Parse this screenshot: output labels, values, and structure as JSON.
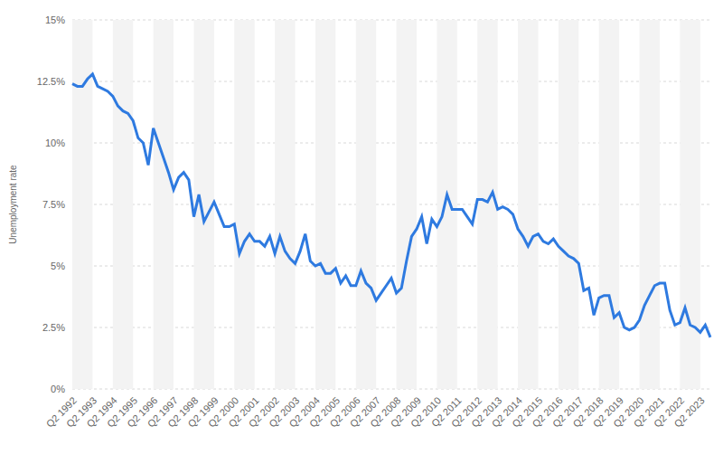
{
  "chart_data": {
    "type": "line",
    "y_label": "Unemployment rate",
    "color": "#2e7ae0",
    "grid": true,
    "ylim": [
      0,
      15
    ],
    "yticks": [
      {
        "value": 0,
        "label": "0%"
      },
      {
        "value": 2.5,
        "label": "2.5%"
      },
      {
        "value": 5,
        "label": "5%"
      },
      {
        "value": 7.5,
        "label": "7.5%"
      },
      {
        "value": 10,
        "label": "10%"
      },
      {
        "value": 12.5,
        "label": "12.5%"
      },
      {
        "value": 15,
        "label": "15%"
      }
    ],
    "categories": [
      "Q2 1992",
      null,
      null,
      null,
      "Q2 1993",
      null,
      null,
      null,
      "Q2 1994",
      null,
      null,
      null,
      "Q2 1995",
      null,
      null,
      null,
      "Q2 1996",
      null,
      null,
      null,
      "Q2 1997",
      null,
      null,
      null,
      "Q2 1998",
      null,
      null,
      null,
      "Q2 1999",
      null,
      null,
      null,
      "Q2 2000",
      null,
      null,
      null,
      "Q2 2001",
      null,
      null,
      null,
      "Q2 2002",
      null,
      null,
      null,
      "Q2 2003",
      null,
      null,
      null,
      "Q2 2004",
      null,
      null,
      null,
      "Q2 2005",
      null,
      null,
      null,
      "Q2 2006",
      null,
      null,
      null,
      "Q2 2007",
      null,
      null,
      null,
      "Q2 2008",
      null,
      null,
      null,
      "Q2 2009",
      null,
      null,
      null,
      "Q2 2010",
      null,
      null,
      null,
      "Q2 2011",
      null,
      null,
      null,
      "Q2 2012",
      null,
      null,
      null,
      "Q2 2013",
      null,
      null,
      null,
      "Q2 2014",
      null,
      null,
      null,
      "Q2 2015",
      null,
      null,
      null,
      "Q2 2016",
      null,
      null,
      null,
      "Q2 2017",
      null,
      null,
      null,
      "Q2 2018",
      null,
      null,
      null,
      "Q2 2019",
      null,
      null,
      null,
      "Q2 2020",
      null,
      null,
      null,
      "Q2 2021",
      null,
      null,
      null,
      "Q2 2022",
      null,
      null,
      null,
      "Q2 2023",
      null,
      null
    ],
    "values": [
      12.4,
      12.3,
      12.3,
      12.6,
      12.8,
      12.3,
      12.2,
      12.1,
      11.9,
      11.5,
      11.3,
      11.2,
      10.9,
      10.2,
      10.0,
      9.1,
      10.6,
      10.0,
      9.4,
      8.8,
      8.1,
      8.6,
      8.8,
      8.5,
      7.0,
      7.9,
      6.8,
      7.2,
      7.6,
      7.1,
      6.6,
      6.6,
      6.7,
      5.5,
      6.0,
      6.3,
      6.0,
      6.0,
      5.8,
      6.2,
      5.5,
      6.2,
      5.6,
      5.3,
      5.1,
      5.6,
      6.3,
      5.2,
      5.0,
      5.1,
      4.7,
      4.7,
      4.9,
      4.3,
      4.6,
      4.2,
      4.2,
      4.8,
      4.3,
      4.1,
      3.6,
      3.9,
      4.2,
      4.5,
      3.9,
      4.1,
      5.2,
      6.2,
      6.5,
      7.0,
      5.9,
      6.9,
      6.6,
      7.0,
      7.9,
      7.3,
      7.3,
      7.3,
      7.0,
      6.7,
      7.7,
      7.7,
      7.6,
      8.0,
      7.3,
      7.4,
      7.3,
      7.1,
      6.5,
      6.2,
      5.8,
      6.2,
      6.3,
      6.0,
      5.9,
      6.1,
      5.8,
      5.6,
      5.4,
      5.3,
      5.1,
      4.0,
      4.1,
      3.0,
      3.7,
      3.8,
      3.8,
      2.9,
      3.1,
      2.5,
      2.4,
      2.5,
      2.8,
      3.4,
      3.8,
      4.2,
      4.3,
      4.3,
      3.2,
      2.6,
      2.7,
      3.3,
      2.6,
      2.5,
      2.3,
      2.6,
      2.1
    ]
  }
}
